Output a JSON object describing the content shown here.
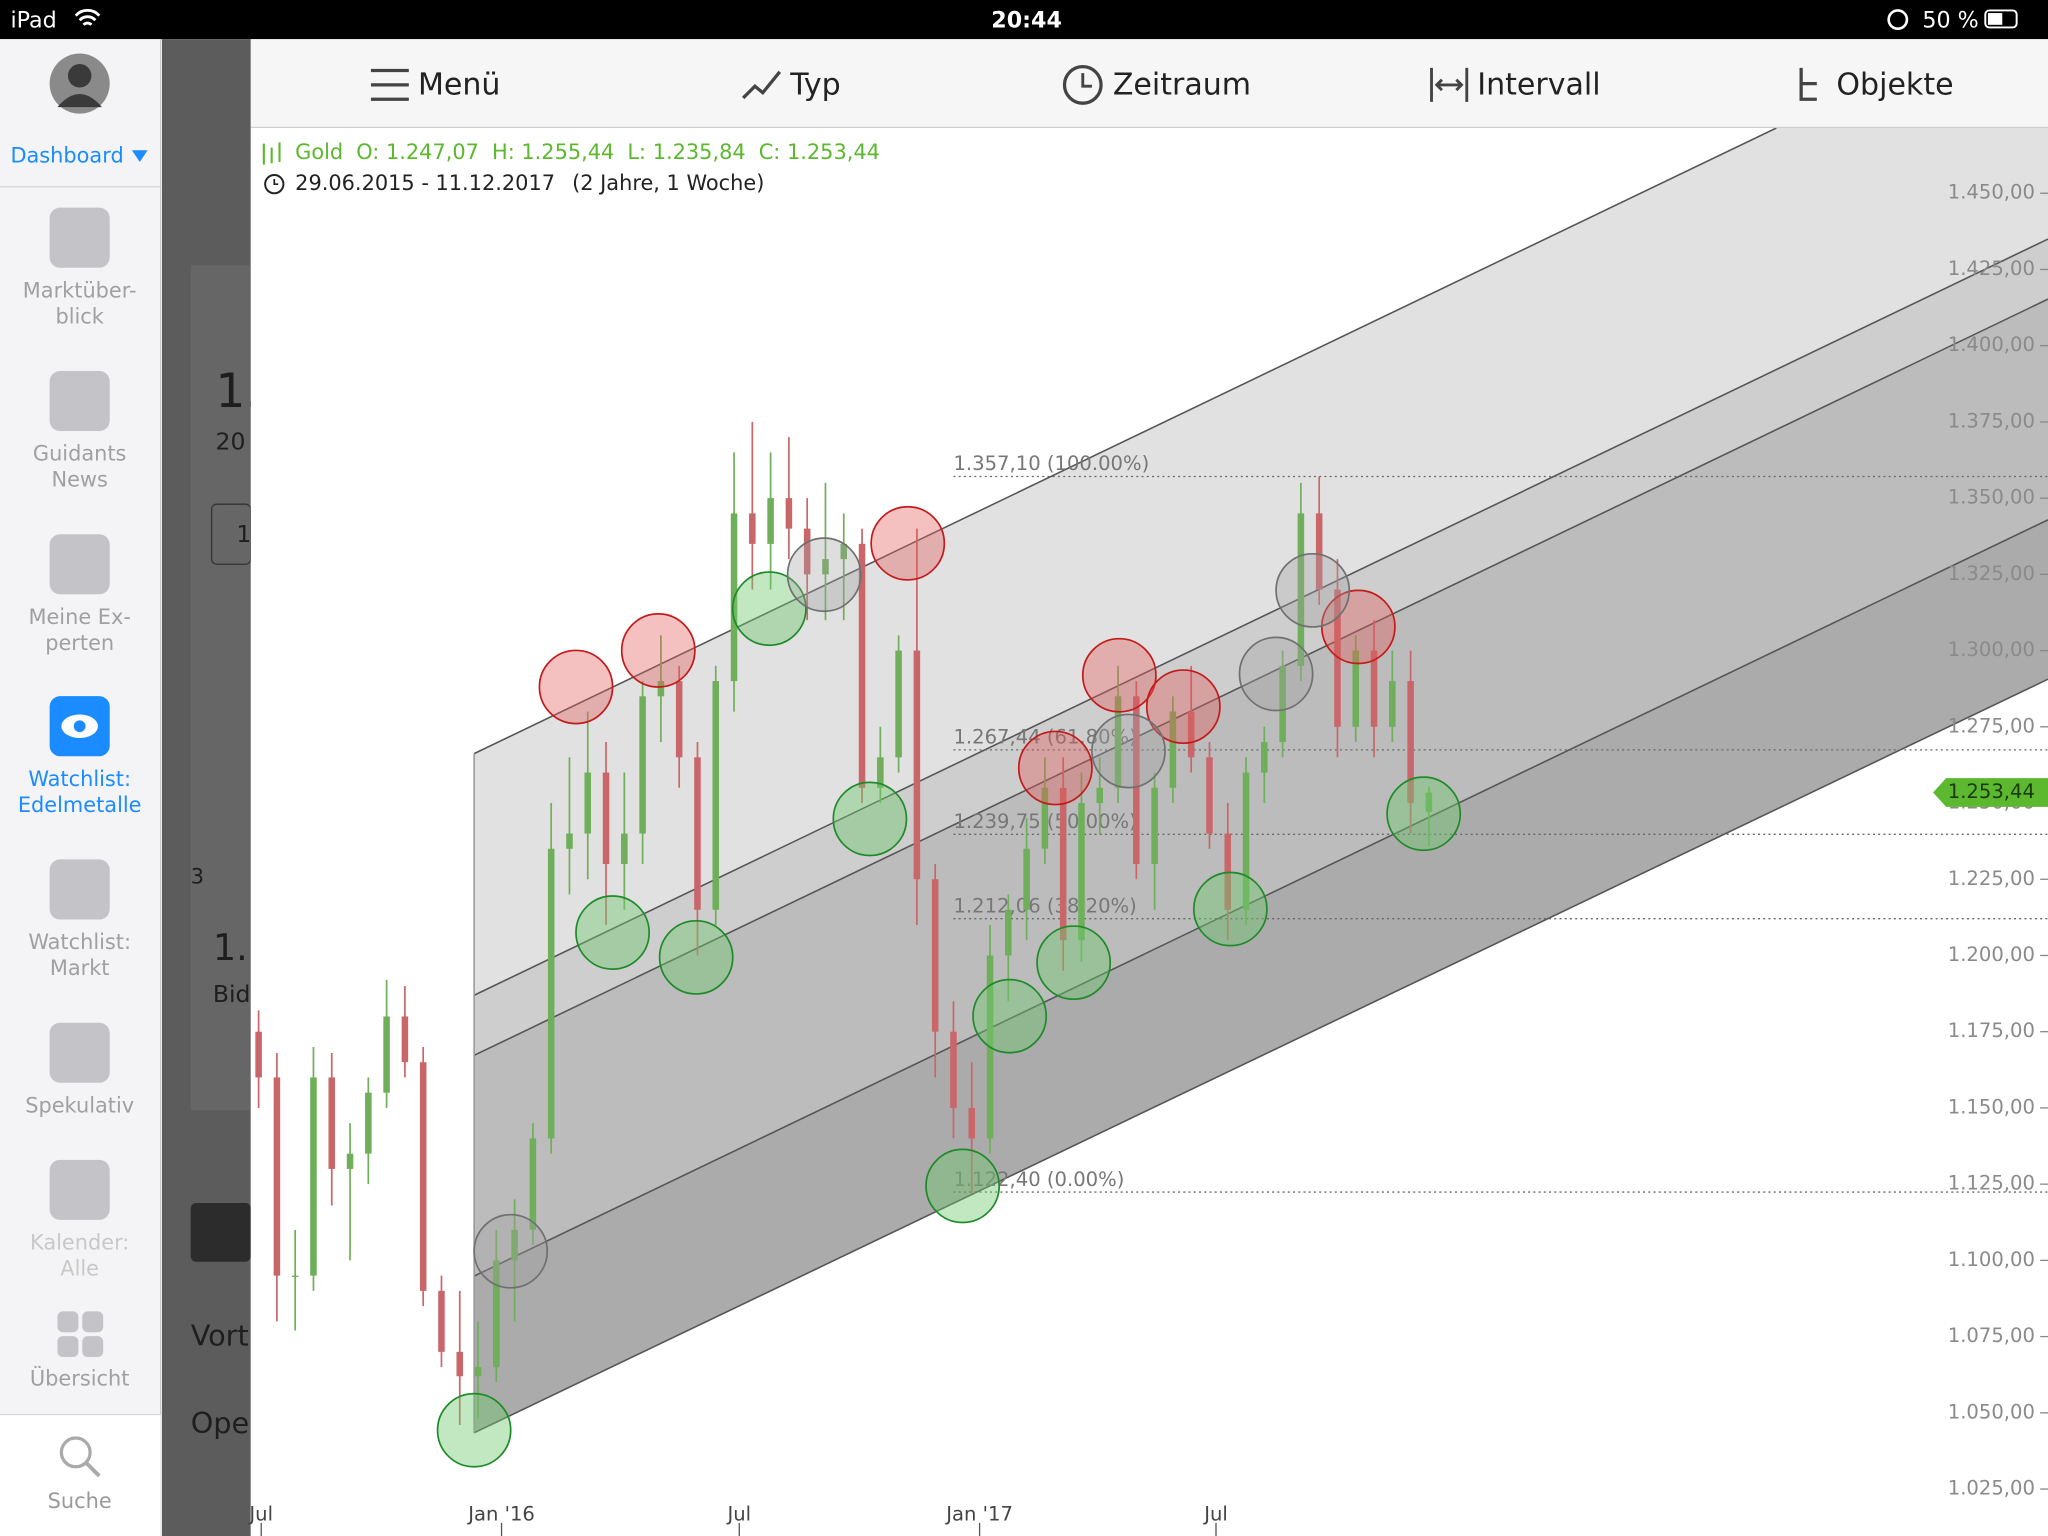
{
  "status_bar": {
    "device": "iPad",
    "time": "20:44",
    "battery": "50 %"
  },
  "sidebar": {
    "dashboard": "Dashboard",
    "items": [
      {
        "lines": [
          "Marktüber-",
          "blick"
        ]
      },
      {
        "lines": [
          "Guidants",
          "News"
        ]
      },
      {
        "lines": [
          "Meine Ex-",
          "perten"
        ]
      },
      {
        "lines": [
          "Watchlist:",
          "Edelmetalle"
        ]
      },
      {
        "lines": [
          "Watchlist:",
          "Markt"
        ]
      },
      {
        "lines": [
          "Spekulativ"
        ]
      },
      {
        "lines": [
          "Kalender:",
          "Alle"
        ]
      },
      {
        "lines": [
          "Übersicht"
        ]
      }
    ],
    "search": "Suche"
  },
  "background_panel": [
    "1.",
    "20",
    "1",
    "3",
    "1.",
    "Bid",
    "Vort",
    "Ope"
  ],
  "toolbar": [
    "Menü",
    "Typ",
    "Zeitraum",
    "Intervall",
    "Objekte"
  ],
  "chart_data": {
    "type": "candlestick",
    "header": {
      "name": "Gold",
      "ohlc": [
        {
          "value": 1247.07,
          "label": "O: 1.247,07"
        },
        {
          "value": 1255.44,
          "label": "H: 1.255,44"
        },
        {
          "value": 1235.84,
          "label": "L: 1.235,84"
        },
        {
          "value": 1253.44,
          "label": "C: 1.253,44"
        }
      ],
      "range": "29.06.2015 - 11.12.2017",
      "period": "(2 Jahre, 1 Woche)"
    },
    "up_color": "#6fae5a",
    "down_color": "#c9666a",
    "x": [
      "2015-06-29",
      "2015-07-13",
      "2015-07-27",
      "2015-08-10",
      "2015-08-24",
      "2015-09-07",
      "2015-09-21",
      "2015-10-05",
      "2015-10-19",
      "2015-11-02",
      "2015-11-16",
      "2015-11-30",
      "2015-12-14",
      "2015-12-28",
      "2016-01-11",
      "2016-01-25",
      "2016-02-08",
      "2016-02-22",
      "2016-03-07",
      "2016-03-21",
      "2016-04-04",
      "2016-04-18",
      "2016-05-02",
      "2016-05-16",
      "2016-05-30",
      "2016-06-13",
      "2016-06-27",
      "2016-07-11",
      "2016-07-25",
      "2016-08-08",
      "2016-08-22",
      "2016-09-05",
      "2016-09-19",
      "2016-10-03",
      "2016-10-17",
      "2016-10-31",
      "2016-11-14",
      "2016-11-28",
      "2016-12-12",
      "2016-12-26",
      "2017-01-09",
      "2017-01-23",
      "2017-02-06",
      "2017-02-20",
      "2017-03-06",
      "2017-03-20",
      "2017-04-03",
      "2017-04-17",
      "2017-05-01",
      "2017-05-15",
      "2017-05-29",
      "2017-06-12",
      "2017-06-26",
      "2017-07-10",
      "2017-07-24",
      "2017-08-07",
      "2017-08-21",
      "2017-09-04",
      "2017-09-18",
      "2017-10-02",
      "2017-10-16",
      "2017-10-30",
      "2017-11-13",
      "2017-11-27",
      "2017-12-11"
    ],
    "open": [
      1175,
      1160,
      1095,
      1095,
      1160,
      1130,
      1135,
      1155,
      1180,
      1165,
      1090,
      1070,
      1062,
      1065,
      1100,
      1110,
      1140,
      1235,
      1240,
      1260,
      1230,
      1240,
      1285,
      1290,
      1265,
      1215,
      1290,
      1345,
      1335,
      1350,
      1340,
      1325,
      1330,
      1335,
      1255,
      1265,
      1300,
      1225,
      1175,
      1150,
      1140,
      1200,
      1215,
      1235,
      1255,
      1205,
      1250,
      1255,
      1285,
      1230,
      1255,
      1280,
      1265,
      1240,
      1215,
      1260,
      1270,
      1295,
      1345,
      1320,
      1275,
      1300,
      1275,
      1290,
      1247.07
    ],
    "high": [
      1182,
      1168,
      1110,
      1170,
      1168,
      1145,
      1160,
      1192,
      1190,
      1170,
      1095,
      1090,
      1080,
      1110,
      1120,
      1145,
      1250,
      1265,
      1280,
      1270,
      1260,
      1290,
      1305,
      1295,
      1270,
      1295,
      1365,
      1375,
      1365,
      1370,
      1350,
      1355,
      1345,
      1340,
      1275,
      1305,
      1340,
      1230,
      1185,
      1165,
      1210,
      1220,
      1245,
      1265,
      1265,
      1260,
      1265,
      1295,
      1290,
      1260,
      1285,
      1295,
      1270,
      1250,
      1265,
      1275,
      1300,
      1355,
      1357,
      1330,
      1305,
      1310,
      1300,
      1300,
      1255.44
    ],
    "low": [
      1150,
      1080,
      1077,
      1090,
      1118,
      1100,
      1125,
      1150,
      1160,
      1085,
      1065,
      1046,
      1048,
      1060,
      1080,
      1105,
      1135,
      1220,
      1225,
      1210,
      1215,
      1230,
      1270,
      1255,
      1200,
      1210,
      1280,
      1320,
      1320,
      1330,
      1310,
      1310,
      1310,
      1250,
      1250,
      1260,
      1210,
      1160,
      1140,
      1122,
      1135,
      1185,
      1205,
      1230,
      1195,
      1198,
      1240,
      1250,
      1225,
      1215,
      1250,
      1260,
      1235,
      1205,
      1210,
      1250,
      1265,
      1290,
      1315,
      1265,
      1270,
      1265,
      1270,
      1240,
      1235.84
    ],
    "close": [
      1160,
      1095,
      1095,
      1160,
      1130,
      1135,
      1155,
      1180,
      1165,
      1090,
      1070,
      1062,
      1065,
      1100,
      1110,
      1140,
      1235,
      1240,
      1260,
      1230,
      1240,
      1285,
      1290,
      1265,
      1215,
      1290,
      1345,
      1335,
      1350,
      1340,
      1325,
      1330,
      1335,
      1255,
      1265,
      1300,
      1225,
      1175,
      1150,
      1140,
      1200,
      1215,
      1235,
      1255,
      1205,
      1250,
      1255,
      1285,
      1230,
      1255,
      1280,
      1265,
      1240,
      1215,
      1260,
      1270,
      1295,
      1345,
      1320,
      1275,
      1300,
      1275,
      1290,
      1250,
      1253.44
    ],
    "xlim": [
      "2015-06-23",
      "2019-03-30"
    ],
    "xticks": [
      {
        "value": "2015-07-01",
        "label": "Jul"
      },
      {
        "value": "2016-01-01",
        "label": "Jan '16"
      },
      {
        "value": "2016-07-01",
        "label": "Jul"
      },
      {
        "value": "2017-01-01",
        "label": "Jan '17"
      },
      {
        "value": "2017-07-01",
        "label": "Jul"
      }
    ],
    "ylim": [
      1009.6,
      1471.4
    ],
    "yticks": [
      {
        "value": 1025,
        "label": "1.025,00"
      },
      {
        "value": 1050,
        "label": "1.050,00"
      },
      {
        "value": 1075,
        "label": "1.075,00"
      },
      {
        "value": 1100,
        "label": "1.100,00"
      },
      {
        "value": 1125,
        "label": "1.125,00"
      },
      {
        "value": 1150,
        "label": "1.150,00"
      },
      {
        "value": 1175,
        "label": "1.175,00"
      },
      {
        "value": 1200,
        "label": "1.200,00"
      },
      {
        "value": 1225,
        "label": "1.225,00"
      },
      {
        "value": 1250,
        "label": "1.250,00"
      },
      {
        "value": 1275,
        "label": "1.275,00"
      },
      {
        "value": 1300,
        "label": "1.300,00"
      },
      {
        "value": 1325,
        "label": "1.325,00"
      },
      {
        "value": 1350,
        "label": "1.350,00"
      },
      {
        "value": 1375,
        "label": "1.375,00"
      },
      {
        "value": 1400,
        "label": "1.400,00"
      },
      {
        "value": 1425,
        "label": "1.425,00"
      },
      {
        "value": 1450,
        "label": "1.450,00"
      }
    ],
    "last_price": {
      "value": 1253.44,
      "label": "1.253,44",
      "color": "#5cb82e"
    },
    "fib_levels": [
      {
        "value": 1357.1,
        "label": "1.357,10 (100.00%)"
      },
      {
        "value": 1267.44,
        "label": "1.267,44 (61.80%)"
      },
      {
        "value": 1239.75,
        "label": "1.239,75 (50.00%)"
      },
      {
        "value": 1212.06,
        "label": "1.212,06 (38.20%)"
      },
      {
        "value": 1122.4,
        "label": "1.122,40 (0.00%)"
      }
    ]
  }
}
